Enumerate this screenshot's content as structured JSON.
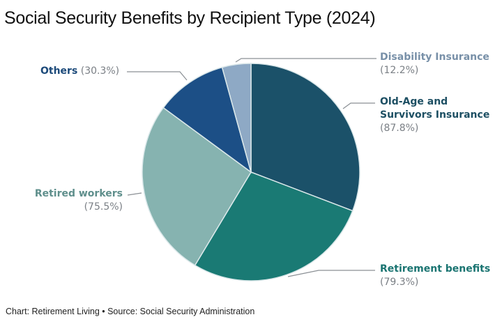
{
  "chart_data": {
    "type": "pie",
    "title": "Social Security Benefits by Recipient Type (2024)",
    "start_angle": "12 o'clock, clockwise",
    "slices": [
      {
        "label": "Old-Age and Survivors Insurance",
        "value": 87.8,
        "value_label": "(87.8%)",
        "color": "#1b5169",
        "label_color": "#1d4f63"
      },
      {
        "label": "Retirement benefits",
        "value": 79.3,
        "value_label": "(79.3%)",
        "color": "#1a7a74",
        "label_color": "#1a7471"
      },
      {
        "label": "Retired workers",
        "value": 75.5,
        "value_label": "(75.5%)",
        "color": "#86b3b0",
        "label_color": "#5f8f8c"
      },
      {
        "label": "Others",
        "value": 30.3,
        "value_label": "(30.3%)",
        "color": "#1c4f86",
        "label_color": "#1c4a7a"
      },
      {
        "label": "Disability Insurance",
        "value": 12.2,
        "value_label": "(12.2%)",
        "color": "#8ea9c5",
        "label_color": "#7890a8"
      }
    ],
    "legend": "none (leader-line labels)"
  },
  "footer": "Chart: Retirement Living • Source: Social Security Administration"
}
